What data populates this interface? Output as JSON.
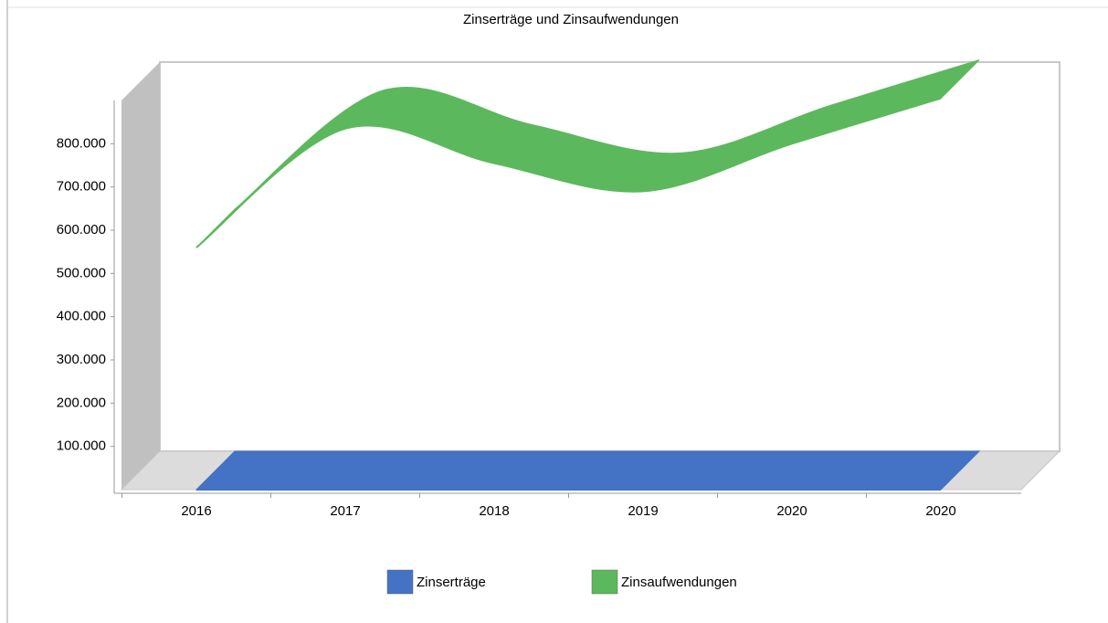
{
  "chart_data": {
    "type": "area3d",
    "title": "Zinserträge und Zinsaufwendungen",
    "categories": [
      "2016",
      "2017",
      "2018",
      "2019",
      "2020",
      "2020"
    ],
    "series": [
      {
        "name": "Zinserträge",
        "color": "#4472c4",
        "values": [
          0,
          0,
          0,
          0,
          0,
          0
        ]
      },
      {
        "name": "Zinsaufwendungen",
        "color": "#5cb85c",
        "values": [
          560000,
          835000,
          755000,
          690000,
          800000,
          905000
        ]
      }
    ],
    "ylim": [
      0,
      900000
    ],
    "yticks": [
      {
        "value": 100000,
        "label": "100.000"
      },
      {
        "value": 200000,
        "label": "200.000"
      },
      {
        "value": 300000,
        "label": "300.000"
      },
      {
        "value": 400000,
        "label": "400.000"
      },
      {
        "value": 500000,
        "label": "500.000"
      },
      {
        "value": 600000,
        "label": "600.000"
      },
      {
        "value": 700000,
        "label": "700.000"
      },
      {
        "value": 800000,
        "label": "800.000"
      }
    ],
    "legend": "bottom"
  }
}
